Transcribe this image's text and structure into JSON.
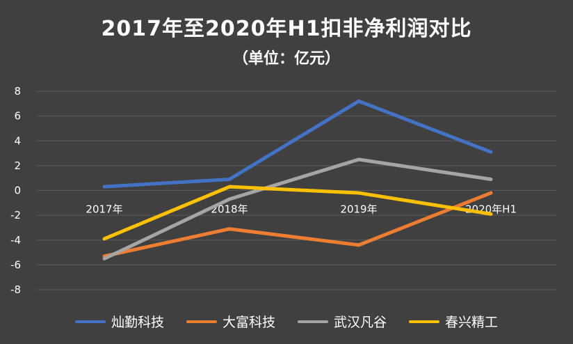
{
  "chart_data": {
    "type": "line",
    "title": "2017年至2020年H1扣非净利润对比",
    "subtitle": "（单位：亿元）",
    "categories": [
      "2017年",
      "2018年",
      "2019年",
      "2020年H1"
    ],
    "ylim": [
      -8,
      8
    ],
    "yticks": [
      -8,
      -6,
      -4,
      -2,
      0,
      2,
      4,
      6,
      8
    ],
    "grid": true,
    "legend_position": "bottom",
    "series": [
      {
        "name": "灿勤科技",
        "color": "#4472C4",
        "values": [
          0.3,
          0.9,
          7.2,
          3.1
        ]
      },
      {
        "name": "大富科技",
        "color": "#ED7D31",
        "values": [
          -5.3,
          -3.1,
          -4.4,
          -0.2
        ]
      },
      {
        "name": "武汉凡谷",
        "color": "#A5A5A5",
        "values": [
          -5.5,
          -0.7,
          2.5,
          0.9
        ]
      },
      {
        "name": "春兴精工",
        "color": "#FFC000",
        "values": [
          -3.9,
          0.3,
          -0.2,
          -1.9
        ]
      }
    ]
  }
}
